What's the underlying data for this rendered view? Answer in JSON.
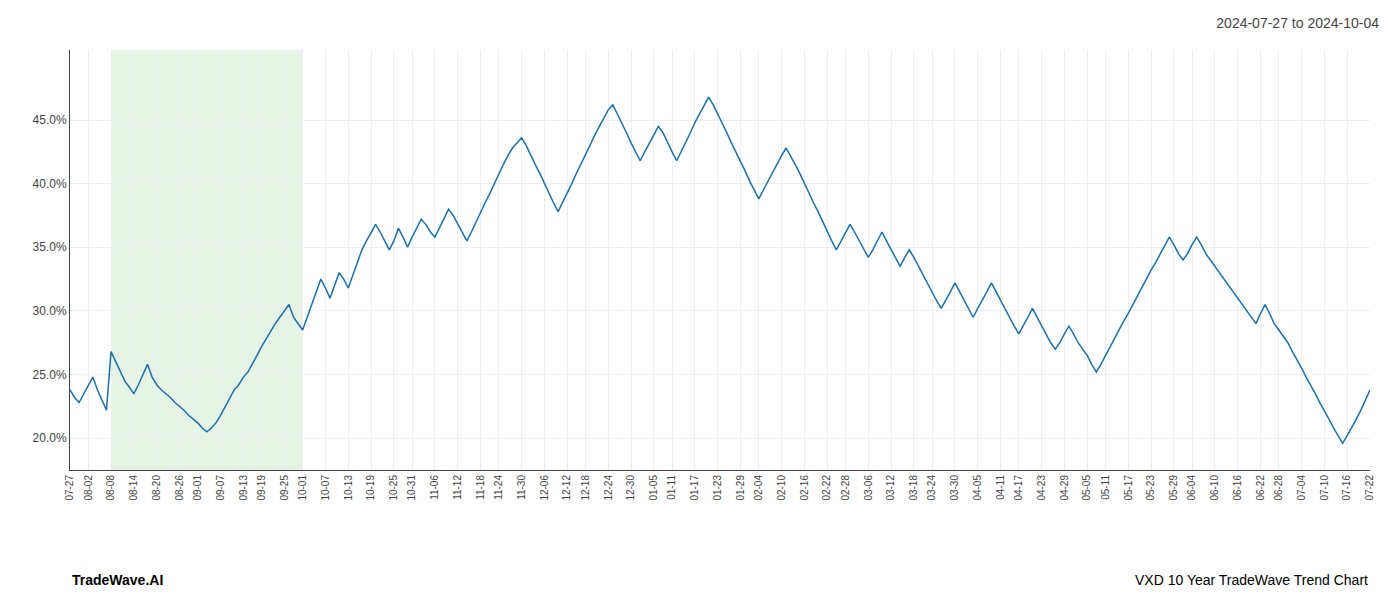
{
  "chart_data": {
    "type": "line",
    "title": "2024-07-27 to 2024-10-04",
    "annotations": [
      {
        "text": "TradeWave.AI"
      },
      {
        "text": "VXD 10 Year TradeWave Trend Chart"
      }
    ],
    "color": "#1a6faf",
    "grid": true,
    "shaded_region": {
      "from": "08-08",
      "to": "10-01",
      "color": "#d4ecd4"
    },
    "ylim": [
      0.175,
      0.505
    ],
    "yticks": [
      {
        "value": 0.2,
        "label": "20.0%"
      },
      {
        "value": 0.25,
        "label": "25.0%"
      },
      {
        "value": 0.3,
        "label": "30.0%"
      },
      {
        "value": 0.35,
        "label": "35.0%"
      },
      {
        "value": 0.4,
        "label": "40.0%"
      },
      {
        "value": 0.45,
        "label": "45.0%"
      }
    ],
    "categories": [
      "07-27",
      null,
      null,
      null,
      "08-02",
      null,
      null,
      null,
      null,
      "08-08",
      null,
      null,
      null,
      null,
      "08-14",
      null,
      null,
      null,
      null,
      "08-20",
      null,
      null,
      null,
      null,
      "08-26",
      null,
      null,
      null,
      "09-01",
      null,
      null,
      null,
      null,
      "09-07",
      null,
      null,
      null,
      null,
      "09-13",
      null,
      null,
      null,
      "09-19",
      null,
      null,
      null,
      null,
      "09-25",
      null,
      null,
      null,
      "10-01",
      null,
      null,
      null,
      null,
      "10-07",
      null,
      null,
      null,
      null,
      "10-13",
      null,
      null,
      null,
      null,
      "10-19",
      null,
      null,
      null,
      null,
      "10-25",
      null,
      null,
      null,
      "10-31",
      null,
      null,
      null,
      null,
      "11-06",
      null,
      null,
      null,
      null,
      "11-12",
      null,
      null,
      null,
      null,
      "11-18",
      null,
      null,
      null,
      "11-24",
      null,
      null,
      null,
      null,
      "11-30",
      null,
      null,
      null,
      null,
      "12-06",
      null,
      null,
      null,
      null,
      "12-12",
      null,
      null,
      null,
      "12-18",
      null,
      null,
      null,
      null,
      "12-24",
      null,
      null,
      null,
      null,
      "12-30",
      null,
      null,
      null,
      null,
      "01-05",
      null,
      null,
      null,
      "01-11",
      null,
      null,
      null,
      null,
      "01-17",
      null,
      null,
      null,
      null,
      "01-23",
      null,
      null,
      null,
      null,
      "01-29",
      null,
      null,
      null,
      "02-04",
      null,
      null,
      null,
      null,
      "02-10",
      null,
      null,
      null,
      null,
      "02-16",
      null,
      null,
      null,
      null,
      "02-22",
      null,
      null,
      null,
      "02-28",
      null,
      null,
      null,
      null,
      "03-06",
      null,
      null,
      null,
      null,
      "03-12",
      null,
      null,
      null,
      null,
      "03-18",
      null,
      null,
      null,
      "03-24",
      null,
      null,
      null,
      null,
      "03-30",
      null,
      null,
      null,
      null,
      "04-05",
      null,
      null,
      null,
      null,
      "04-11",
      null,
      null,
      null,
      "04-17",
      null,
      null,
      null,
      null,
      "04-23",
      null,
      null,
      null,
      null,
      "04-29",
      null,
      null,
      null,
      null,
      "05-05",
      null,
      null,
      null,
      "05-11",
      null,
      null,
      null,
      null,
      "05-17",
      null,
      null,
      null,
      null,
      "05-23",
      null,
      null,
      null,
      null,
      "05-29",
      null,
      null,
      null,
      "06-04",
      null,
      null,
      null,
      null,
      "06-10",
      null,
      null,
      null,
      null,
      "06-16",
      null,
      null,
      null,
      null,
      "06-22",
      null,
      null,
      null,
      "06-28",
      null,
      null,
      null,
      null,
      "07-04",
      null,
      null,
      null,
      null,
      "07-10",
      null,
      null,
      null,
      null,
      "07-16",
      null,
      null,
      null,
      null,
      "07-22"
    ],
    "values": [
      0.238,
      0.232,
      0.228,
      0.235,
      0.242,
      0.248,
      0.238,
      0.23,
      0.222,
      0.268,
      0.26,
      0.252,
      0.245,
      0.24,
      0.235,
      0.242,
      0.25,
      0.258,
      0.248,
      0.242,
      0.238,
      0.235,
      0.232,
      0.228,
      0.225,
      0.222,
      0.218,
      0.215,
      0.212,
      0.208,
      0.205,
      0.208,
      0.212,
      0.218,
      0.225,
      0.232,
      0.238,
      0.242,
      0.248,
      0.252,
      0.258,
      0.265,
      0.272,
      0.278,
      0.285,
      0.29,
      0.295,
      0.3,
      0.305,
      0.295,
      0.29,
      0.285,
      0.295,
      0.305,
      0.315,
      0.325,
      0.318,
      0.31,
      0.32,
      0.33,
      0.325,
      0.318,
      0.328,
      0.338,
      0.348,
      0.355,
      0.362,
      0.368,
      0.362,
      0.355,
      0.348,
      0.355,
      0.365,
      0.358,
      0.35,
      0.358,
      0.365,
      0.372,
      0.368,
      0.362,
      0.358,
      0.365,
      0.372,
      0.38,
      0.375,
      0.368,
      0.362,
      0.355,
      0.362,
      0.37,
      0.378,
      0.385,
      0.392,
      0.4,
      0.408,
      0.415,
      0.422,
      0.428,
      0.432,
      0.436,
      0.43,
      0.422,
      0.415,
      0.408,
      0.4,
      0.392,
      0.385,
      0.378,
      0.385,
      0.392,
      0.4,
      0.408,
      0.415,
      0.422,
      0.43,
      0.438,
      0.445,
      0.452,
      0.458,
      0.462,
      0.455,
      0.448,
      0.44,
      0.432,
      0.425,
      0.418,
      0.425,
      0.432,
      0.438,
      0.445,
      0.44,
      0.432,
      0.425,
      0.418,
      0.425,
      0.432,
      0.44,
      0.448,
      0.455,
      0.462,
      0.468,
      0.462,
      0.455,
      0.448,
      0.44,
      0.432,
      0.425,
      0.418,
      0.41,
      0.402,
      0.395,
      0.388,
      0.395,
      0.402,
      0.408,
      0.415,
      0.422,
      0.428,
      0.422,
      0.415,
      0.408,
      0.4,
      0.393,
      0.385,
      0.378,
      0.37,
      0.362,
      0.355,
      0.348,
      0.355,
      0.362,
      0.368,
      0.362,
      0.355,
      0.348,
      0.342,
      0.348,
      0.355,
      0.362,
      0.355,
      0.348,
      0.342,
      0.335,
      0.342,
      0.348,
      0.342,
      0.335,
      0.328,
      0.322,
      0.315,
      0.308,
      0.302,
      0.308,
      0.315,
      0.322,
      0.315,
      0.308,
      0.302,
      0.295,
      0.302,
      0.308,
      0.315,
      0.322,
      0.315,
      0.308,
      0.302,
      0.295,
      0.288,
      0.282,
      0.288,
      0.295,
      0.302,
      0.295,
      0.288,
      0.282,
      0.275,
      0.27,
      0.275,
      0.282,
      0.288,
      0.282,
      0.275,
      0.27,
      0.265,
      0.258,
      0.252,
      0.258,
      0.265,
      0.272,
      0.278,
      0.285,
      0.292,
      0.298,
      0.305,
      0.312,
      0.318,
      0.325,
      0.332,
      0.338,
      0.345,
      0.352,
      0.358,
      0.352,
      0.345,
      0.34,
      0.345,
      0.352,
      0.358,
      0.352,
      0.345,
      0.34,
      0.335,
      0.33,
      0.325,
      0.32,
      0.315,
      0.31,
      0.305,
      0.3,
      0.295,
      0.29,
      0.298,
      0.305,
      0.298,
      0.29,
      0.285,
      0.28,
      0.275,
      0.268,
      0.262,
      0.255,
      0.248,
      0.242,
      0.235,
      0.228,
      0.222,
      0.215,
      0.208,
      0.202,
      0.196,
      0.202,
      0.208,
      0.215,
      0.222,
      0.23,
      0.238
    ]
  }
}
